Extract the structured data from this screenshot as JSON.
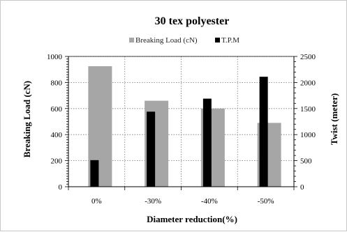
{
  "chart_data": {
    "type": "bar",
    "title": "30 tex polyester",
    "xlabel": "Diameter reduction(%)",
    "ylabel": "Breaking Load (cN)",
    "y2label": "Twist (meter)",
    "categories": [
      "0%",
      "-30%",
      "-40%",
      "-50%"
    ],
    "ylim": [
      0,
      1000
    ],
    "y2lim": [
      0,
      2500
    ],
    "yticks": [
      0,
      200,
      400,
      600,
      800,
      1000
    ],
    "y2ticks": [
      0,
      500,
      1000,
      1500,
      2000,
      2500
    ],
    "grid": "dotted",
    "legend_position": "top",
    "series": [
      {
        "name": "Breaking Load (cN)",
        "axis": "left",
        "color": "#a6a6a6",
        "values": [
          925,
          660,
          600,
          490
        ]
      },
      {
        "name": "T.P.M",
        "axis": "right",
        "color": "#000000",
        "values": [
          510,
          1440,
          1690,
          2110
        ]
      }
    ]
  }
}
